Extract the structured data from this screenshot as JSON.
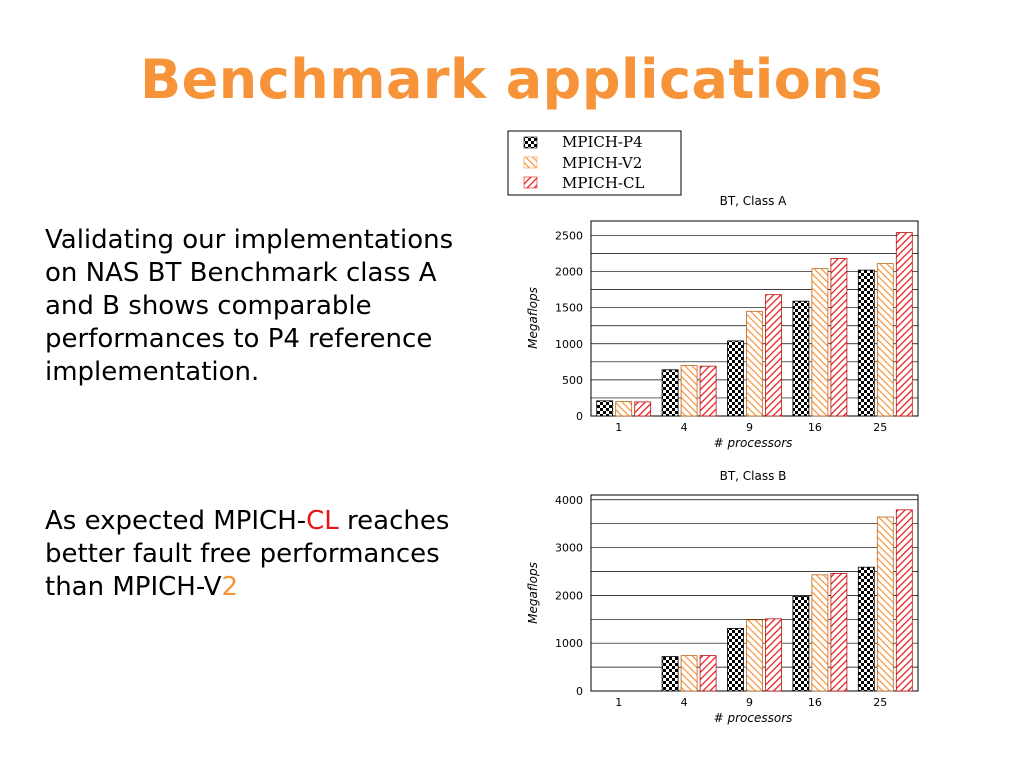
{
  "slide": {
    "title": "Benchmark applications",
    "para1": "Validating our implementations on NAS BT Benchmark class A and B shows comparable performances to P4 reference implementation.",
    "para2_prefix": "As expected MPICH-",
    "para2_cl": "CL",
    "para2_middle": " reaches better fault free performances than MPICH-V",
    "para2_two": "2"
  },
  "colors": {
    "title": "#f7943a",
    "highlight_red": "#e81414",
    "highlight_orange": "#f7943a",
    "p4": "#000000",
    "v2": "#f7943a",
    "cl": "#e81414"
  },
  "legend": [
    "MPICH-P4",
    "MPICH-V2",
    "MPICH-CL"
  ],
  "chart_data": [
    {
      "type": "bar",
      "title": "BT, Class A",
      "xlabel": "# processors",
      "ylabel": "Megaflops",
      "categories": [
        "1",
        "4",
        "9",
        "16",
        "25"
      ],
      "ylim": [
        0,
        2700
      ],
      "yticks": [
        0,
        500,
        1000,
        1500,
        2000,
        2500
      ],
      "grid": true,
      "series": [
        {
          "name": "MPICH-P4",
          "values": [
            210,
            640,
            1040,
            1590,
            2020
          ]
        },
        {
          "name": "MPICH-V2",
          "values": [
            200,
            700,
            1450,
            2040,
            2110
          ]
        },
        {
          "name": "MPICH-CL",
          "values": [
            195,
            690,
            1680,
            2180,
            2540
          ]
        }
      ]
    },
    {
      "type": "bar",
      "title": "BT, Class B",
      "xlabel": "# processors",
      "ylabel": "Megaflops",
      "categories": [
        "1",
        "4",
        "9",
        "16",
        "25"
      ],
      "ylim": [
        0,
        4100
      ],
      "yticks": [
        0,
        1000,
        2000,
        3000,
        4000
      ],
      "grid": true,
      "series": [
        {
          "name": "MPICH-P4",
          "values": [
            null,
            720,
            1310,
            1980,
            2590
          ]
        },
        {
          "name": "MPICH-V2",
          "values": [
            null,
            740,
            1490,
            2430,
            3640
          ]
        },
        {
          "name": "MPICH-CL",
          "values": [
            null,
            740,
            1510,
            2460,
            3790
          ]
        }
      ]
    }
  ]
}
